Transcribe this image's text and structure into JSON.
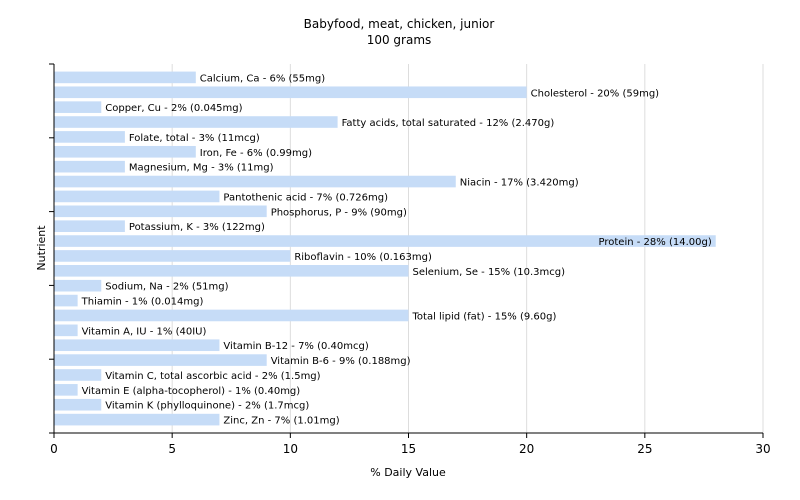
{
  "chart_data": {
    "type": "bar",
    "orientation": "horizontal",
    "title": "Babyfood, meat, chicken, junior",
    "subtitle": "100 grams",
    "xlabel": "% Daily Value",
    "ylabel": "Nutrient",
    "xlim": [
      0,
      30
    ],
    "xticks": [
      "0",
      "5",
      "10",
      "15",
      "20",
      "25",
      "30"
    ],
    "grid": true,
    "bar_color": "#c6dcf7",
    "grid_color": "#dddddd",
    "categories": [
      "Calcium, Ca",
      "Cholesterol",
      "Copper, Cu",
      "Fatty acids, total saturated",
      "Folate, total",
      "Iron, Fe",
      "Magnesium, Mg",
      "Niacin",
      "Pantothenic acid",
      "Phosphorus, P",
      "Potassium, K",
      "Protein",
      "Riboflavin",
      "Selenium, Se",
      "Sodium, Na",
      "Thiamin",
      "Total lipid (fat)",
      "Vitamin A, IU",
      "Vitamin B-12",
      "Vitamin B-6",
      "Vitamin C, total ascorbic acid",
      "Vitamin E (alpha-tocopherol)",
      "Vitamin K (phylloquinone)",
      "Zinc, Zn"
    ],
    "values": [
      6,
      20,
      2,
      12,
      3,
      6,
      3,
      17,
      7,
      9,
      3,
      28,
      10,
      15,
      2,
      1,
      15,
      1,
      7,
      9,
      2,
      1,
      2,
      7
    ],
    "labels": [
      "Calcium, Ca - 6% (55mg)",
      "Cholesterol - 20% (59mg)",
      "Copper, Cu - 2% (0.045mg)",
      "Fatty acids, total saturated - 12% (2.470g)",
      "Folate, total - 3% (11mcg)",
      "Iron, Fe - 6% (0.99mg)",
      "Magnesium, Mg - 3% (11mg)",
      "Niacin - 17% (3.420mg)",
      "Pantothenic acid - 7% (0.726mg)",
      "Phosphorus, P - 9% (90mg)",
      "Potassium, K - 3% (122mg)",
      "Protein - 28% (14.00g)",
      "Riboflavin - 10% (0.163mg)",
      "Selenium, Se - 15% (10.3mcg)",
      "Sodium, Na - 2% (51mg)",
      "Thiamin - 1% (0.014mg)",
      "Total lipid (fat) - 15% (9.60g)",
      "Vitamin A, IU - 1% (40IU)",
      "Vitamin B-12 - 7% (0.40mcg)",
      "Vitamin B-6 - 9% (0.188mg)",
      "Vitamin C, total ascorbic acid - 2% (1.5mg)",
      "Vitamin E (alpha-tocopherol) - 1% (0.40mg)",
      "Vitamin K (phylloquinone) - 2% (1.7mcg)",
      "Zinc, Zn - 7% (1.01mg)"
    ]
  }
}
